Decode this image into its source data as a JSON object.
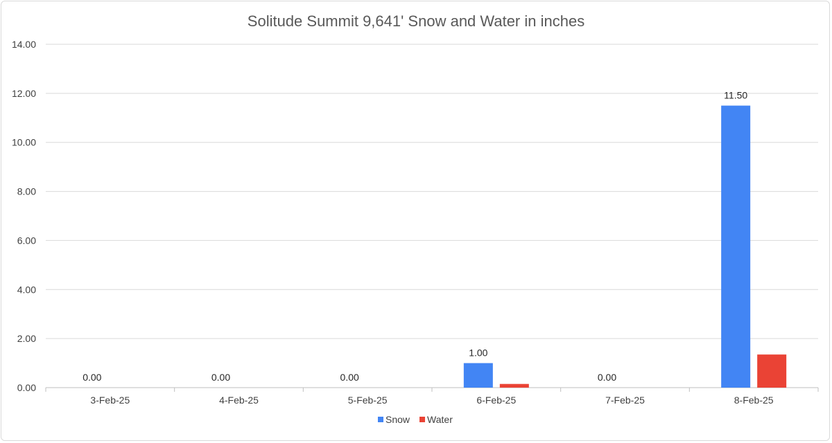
{
  "chart_data": {
    "type": "bar",
    "title": "Solitude Summit 9,641' Snow and Water in inches",
    "xlabel": "",
    "ylabel": "",
    "categories": [
      "3-Feb-25",
      "4-Feb-25",
      "5-Feb-25",
      "6-Feb-25",
      "7-Feb-25",
      "8-Feb-25"
    ],
    "series": [
      {
        "name": "Snow",
        "color": "#4285F4",
        "values": [
          0,
          0,
          0,
          1.0,
          0,
          11.5
        ],
        "labels": [
          "0.00",
          "0.00",
          "0.00",
          "1.00",
          "0.00",
          "11.50"
        ]
      },
      {
        "name": "Water",
        "color": "#EA4335",
        "values": [
          0,
          0,
          0,
          0.15,
          0,
          1.35
        ],
        "labels": [
          "",
          "",
          "",
          "",
          "",
          ""
        ]
      }
    ],
    "ylim": [
      0,
      14
    ],
    "yticks": [
      "0.00",
      "2.00",
      "4.00",
      "6.00",
      "8.00",
      "10.00",
      "12.00",
      "14.00"
    ],
    "grid": true,
    "legend": "bottom"
  }
}
